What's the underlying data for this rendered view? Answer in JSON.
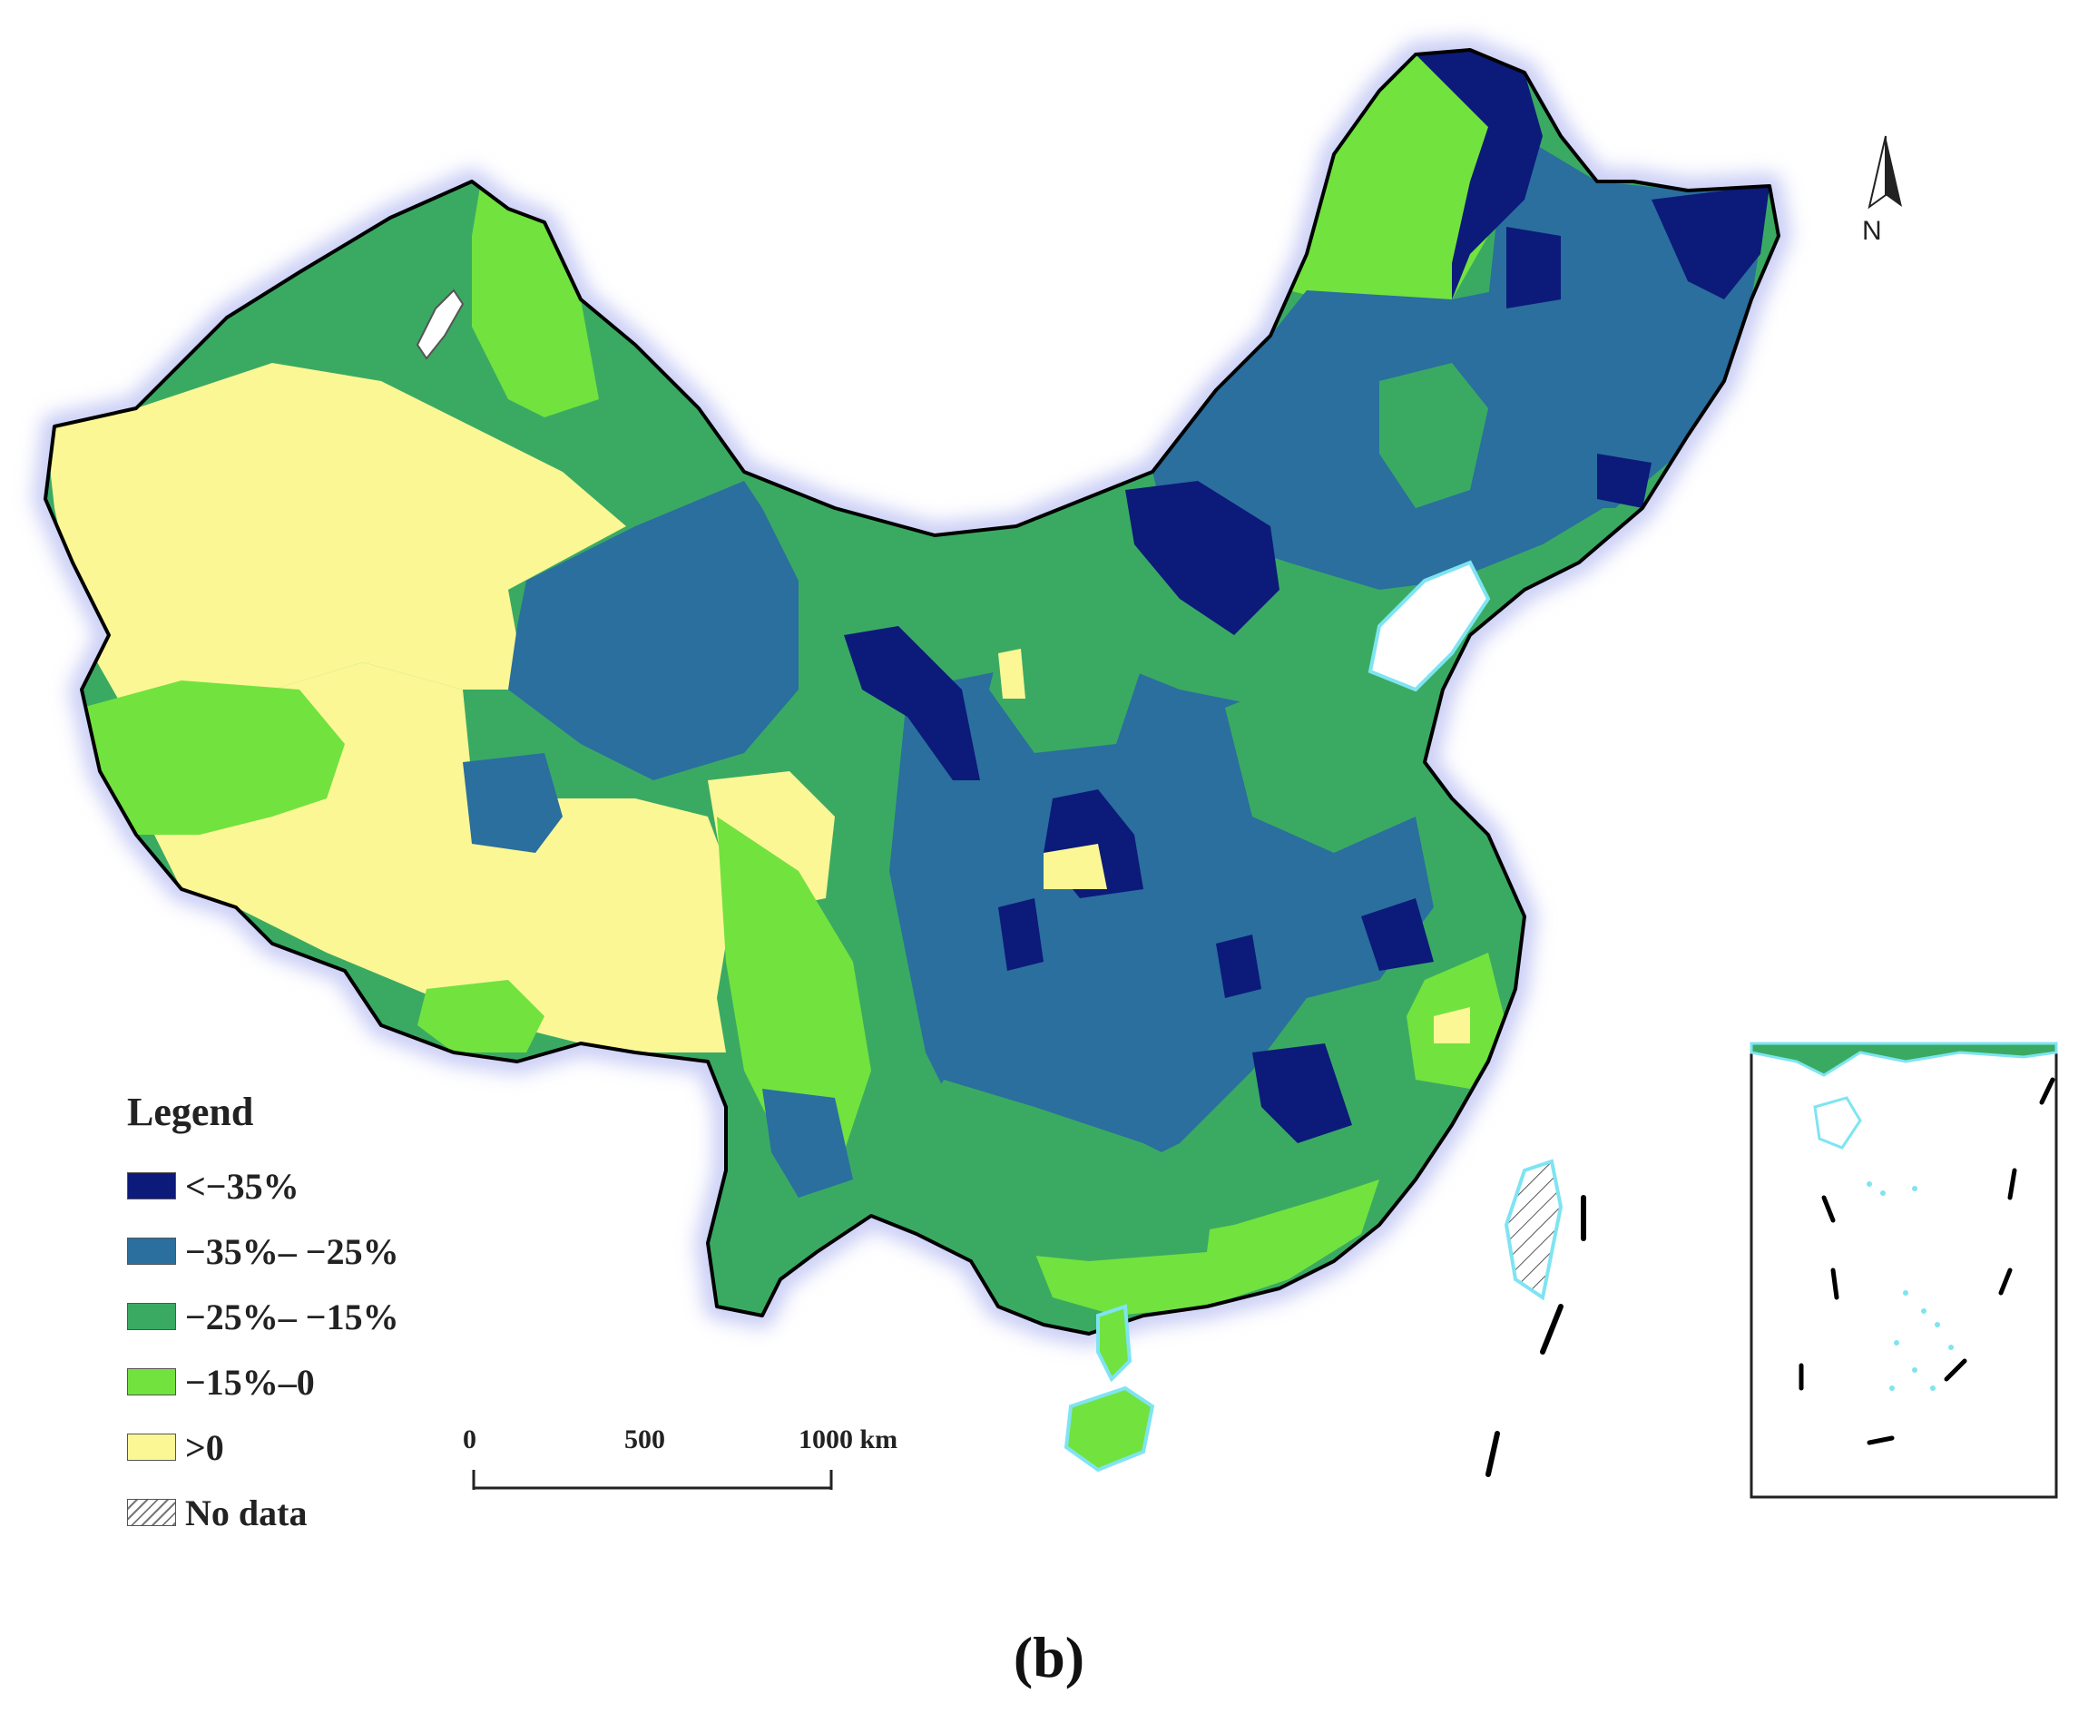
{
  "legend": {
    "title": "Legend",
    "items": [
      {
        "label": "<−35%",
        "color": "#0c1a7a",
        "pattern": false
      },
      {
        "label": "−35%– −25%",
        "color": "#2a6f9e",
        "pattern": false
      },
      {
        "label": "−25%– −15%",
        "color": "#3aaa63",
        "pattern": false
      },
      {
        "label": "−15%–0",
        "color": "#72e23f",
        "pattern": false
      },
      {
        "label": ">0",
        "color": "#fbf795",
        "pattern": false
      },
      {
        "label": "No data",
        "color": "#ffffff",
        "pattern": true
      }
    ]
  },
  "scale_bar": {
    "ticks": [
      "0",
      "500",
      "1000 km"
    ]
  },
  "north_arrow": {
    "label": "N",
    "icon": "north-arrow-icon"
  },
  "panel_label": "(b)",
  "colors": {
    "coast": "#7fe4f2",
    "halo": "#c9cdf5",
    "border": "#000000"
  }
}
